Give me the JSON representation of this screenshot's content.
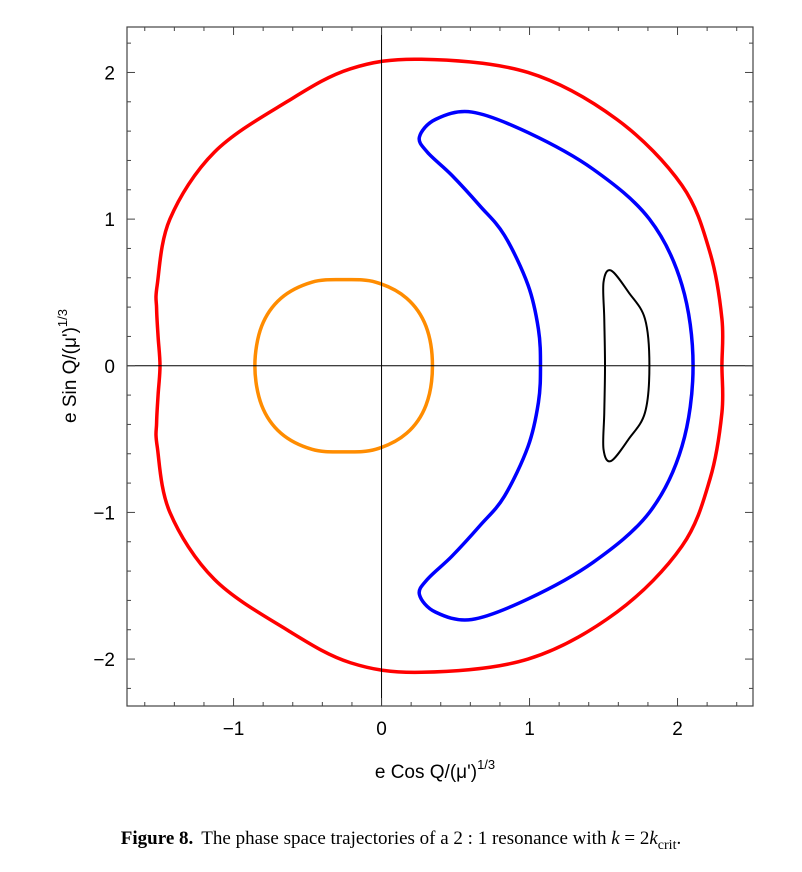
{
  "chart_data": {
    "type": "line",
    "xlabel": "e Cos Q/(μ')",
    "xlabel_sup": "1/3",
    "ylabel": "e Sin Q/(μ')",
    "ylabel_sup": "1/3",
    "xlim": [
      -1.72,
      2.51
    ],
    "ylim": [
      -2.32,
      2.31
    ],
    "xticks": [
      -1,
      0,
      1,
      2
    ],
    "yticks": [
      -2,
      -1,
      0,
      1,
      2
    ],
    "xtick_labels": [
      "−1",
      "0",
      "1",
      "2"
    ],
    "ytick_labels": [
      "−2",
      "−1",
      "0",
      "1",
      "2"
    ],
    "minor_tick_step": 0.2,
    "grid": false,
    "zero_axes": true,
    "symmetric_about_x_axis": true,
    "series": [
      {
        "color": "#ff0000",
        "closed": true,
        "upper_half_points": [
          [
            2.3,
            0
          ],
          [
            2.3,
            0.32
          ],
          [
            2.22,
            0.77
          ],
          [
            2.03,
            1.23
          ],
          [
            1.59,
            1.68
          ],
          [
            0.99,
            2.0
          ],
          [
            0.27,
            2.09
          ],
          [
            -0.21,
            2.025
          ],
          [
            -0.64,
            1.8
          ],
          [
            -1.13,
            1.456
          ],
          [
            -1.43,
            1.0
          ],
          [
            -1.516,
            0.55
          ],
          [
            -1.52,
            0.39
          ],
          [
            -1.51,
            0.2
          ],
          [
            -1.497,
            0
          ]
        ]
      },
      {
        "color": "#0000ff",
        "closed": true,
        "upper_half_points": [
          [
            2.105,
            0
          ],
          [
            2.03,
            0.55
          ],
          [
            1.81,
            1.0
          ],
          [
            1.43,
            1.34
          ],
          [
            0.99,
            1.59
          ],
          [
            0.61,
            1.73
          ],
          [
            0.365,
            1.68
          ],
          [
            0.256,
            1.56
          ],
          [
            0.31,
            1.456
          ],
          [
            0.474,
            1.3
          ],
          [
            0.665,
            1.09
          ],
          [
            0.83,
            0.89
          ],
          [
            0.99,
            0.55
          ],
          [
            1.06,
            0.25
          ],
          [
            1.074,
            0
          ]
        ]
      },
      {
        "color": "#000000",
        "closed": true,
        "upper_half_points": [
          [
            1.81,
            0
          ],
          [
            1.78,
            0.32
          ],
          [
            1.67,
            0.5
          ],
          [
            1.55,
            0.65
          ],
          [
            1.5,
            0.57
          ],
          [
            1.505,
            0.32
          ],
          [
            1.51,
            0
          ]
        ]
      },
      {
        "color": "#ff8c00",
        "closed": true,
        "upper_half_points": [
          [
            0.344,
            0
          ],
          [
            0.3,
            0.27
          ],
          [
            0.17,
            0.46
          ],
          [
            -0.04,
            0.57
          ],
          [
            -0.256,
            0.587
          ],
          [
            -0.47,
            0.57
          ],
          [
            -0.68,
            0.46
          ],
          [
            -0.81,
            0.27
          ],
          [
            -0.856,
            0
          ]
        ]
      }
    ]
  },
  "caption": {
    "label": "Figure 8.",
    "text": "The phase space trajectories of a 2 : 1 resonance with ",
    "k": "k",
    "eq": " = 2",
    "k2": "k",
    "sub": "crit",
    "end": "."
  }
}
